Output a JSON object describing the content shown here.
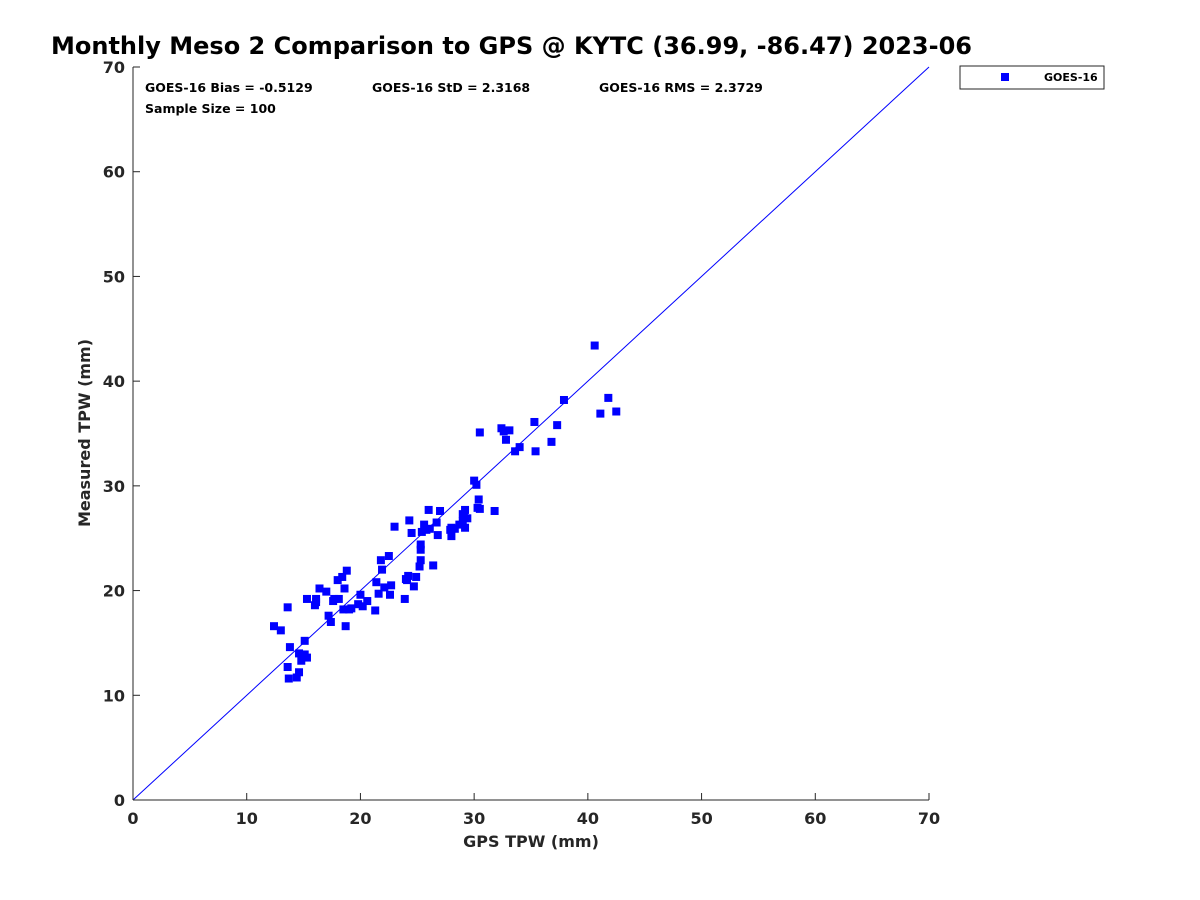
{
  "chart_data": {
    "type": "scatter",
    "title": "Monthly Meso 2 Comparison to GPS @ KYTC (36.99, -86.47) 2023-06",
    "xlabel": "GPS TPW (mm)",
    "ylabel": "Measured TPW (mm)",
    "xlim": [
      0,
      70
    ],
    "ylim": [
      0,
      70
    ],
    "xticks": [
      "0",
      "10",
      "20",
      "30",
      "40",
      "50",
      "60",
      "70"
    ],
    "yticks": [
      "0",
      "10",
      "20",
      "30",
      "40",
      "50",
      "60",
      "70"
    ],
    "grid": false,
    "legend_position": "outside-top-right",
    "reference_line": {
      "x": [
        0,
        70
      ],
      "y": [
        0,
        70
      ],
      "color": "#0000ff"
    },
    "stats": {
      "bias": "GOES-16 Bias = -0.5129",
      "std": "GOES-16 StD = 2.3168",
      "rms": "GOES-16 RMS = 2.3729",
      "sample": "Sample Size = 100"
    },
    "series": [
      {
        "name": "GOES-16",
        "color": "#0000ff",
        "marker": "square",
        "x": [
          12.4,
          13.0,
          13.6,
          13.6,
          13.7,
          13.8,
          14.4,
          14.6,
          14.6,
          14.8,
          15.1,
          15.1,
          15.3,
          15.3,
          16.0,
          16.1,
          16.4,
          17.0,
          17.2,
          17.4,
          17.6,
          17.7,
          18.0,
          18.1,
          18.4,
          18.5,
          18.6,
          18.7,
          18.8,
          19.0,
          19.2,
          19.8,
          20.0,
          20.2,
          21.3,
          21.4,
          21.6,
          21.8,
          21.9,
          22.1,
          22.5,
          22.6,
          22.7,
          23.0,
          23.9,
          24.0,
          24.2,
          24.3,
          24.5,
          24.7,
          24.9,
          25.2,
          25.3,
          25.3,
          25.3,
          25.4,
          25.6,
          25.8,
          26.0,
          26.1,
          26.4,
          26.7,
          26.8,
          27.0,
          27.9,
          28.0,
          28.3,
          28.7,
          29.0,
          29.1,
          29.2,
          29.2,
          29.4,
          30.0,
          30.2,
          30.3,
          30.4,
          30.5,
          30.5,
          31.8,
          32.4,
          32.6,
          32.8,
          33.1,
          33.6,
          34.0,
          35.3,
          35.4,
          36.8,
          37.3,
          37.9,
          40.6,
          41.1,
          41.8,
          42.5,
          16.1,
          20.6,
          24.1,
          28.0,
          29.0
        ],
        "y": [
          16.6,
          16.2,
          18.4,
          12.7,
          11.6,
          14.6,
          11.7,
          12.2,
          14.0,
          13.3,
          13.9,
          15.2,
          13.6,
          19.2,
          18.6,
          19.2,
          20.2,
          19.9,
          17.6,
          17.0,
          19.0,
          19.2,
          21.0,
          19.2,
          21.3,
          18.2,
          20.2,
          16.6,
          21.9,
          18.2,
          18.3,
          18.7,
          19.6,
          18.5,
          18.1,
          20.8,
          19.7,
          22.9,
          22.0,
          20.3,
          23.3,
          19.6,
          20.5,
          26.1,
          19.2,
          21.1,
          21.4,
          26.7,
          25.5,
          20.4,
          21.3,
          22.3,
          22.9,
          23.9,
          24.4,
          25.6,
          26.3,
          25.8,
          27.7,
          25.9,
          22.4,
          26.5,
          25.3,
          27.6,
          25.8,
          25.2,
          25.9,
          26.3,
          26.6,
          27.1,
          26.0,
          27.7,
          26.9,
          30.5,
          30.1,
          27.9,
          28.7,
          27.8,
          35.1,
          27.6,
          35.5,
          35.2,
          34.4,
          35.3,
          33.3,
          33.7,
          36.1,
          33.3,
          34.2,
          35.8,
          38.2,
          43.4,
          36.9,
          38.4,
          37.1,
          18.9,
          19.0,
          21.0,
          26.0,
          27.3
        ]
      }
    ]
  }
}
